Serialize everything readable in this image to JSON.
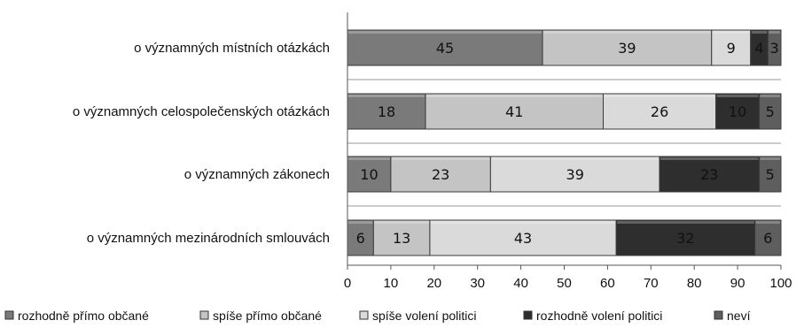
{
  "chart_data": {
    "type": "bar",
    "orientation": "horizontal",
    "stacked": true,
    "title": "",
    "xlabel": "",
    "ylabel": "",
    "xlim": [
      0,
      100
    ],
    "x_ticks": [
      0,
      10,
      20,
      30,
      40,
      50,
      60,
      70,
      80,
      90,
      100
    ],
    "grid": false,
    "legend_position": "bottom",
    "categories": [
      "o významných místních otázkách",
      "o významných celospolečenských otázkách",
      "o významných zákonech",
      "o významných mezinárodních smlouvách"
    ],
    "series": [
      {
        "name": "rozhodně přímo občané",
        "color": "#7a7a7a",
        "values": [
          45,
          18,
          10,
          6
        ]
      },
      {
        "name": "spíše přímo občané",
        "color": "#c4c4c4",
        "values": [
          39,
          41,
          23,
          13
        ]
      },
      {
        "name": "spíše volení politici",
        "color": "#dadada",
        "values": [
          9,
          26,
          39,
          43
        ]
      },
      {
        "name": "rozhodně volení politici",
        "color": "#2e2e2e",
        "values": [
          4,
          10,
          23,
          32
        ]
      },
      {
        "name": "neví",
        "color": "#5e5e5e",
        "values": [
          3,
          5,
          5,
          6
        ]
      }
    ]
  }
}
